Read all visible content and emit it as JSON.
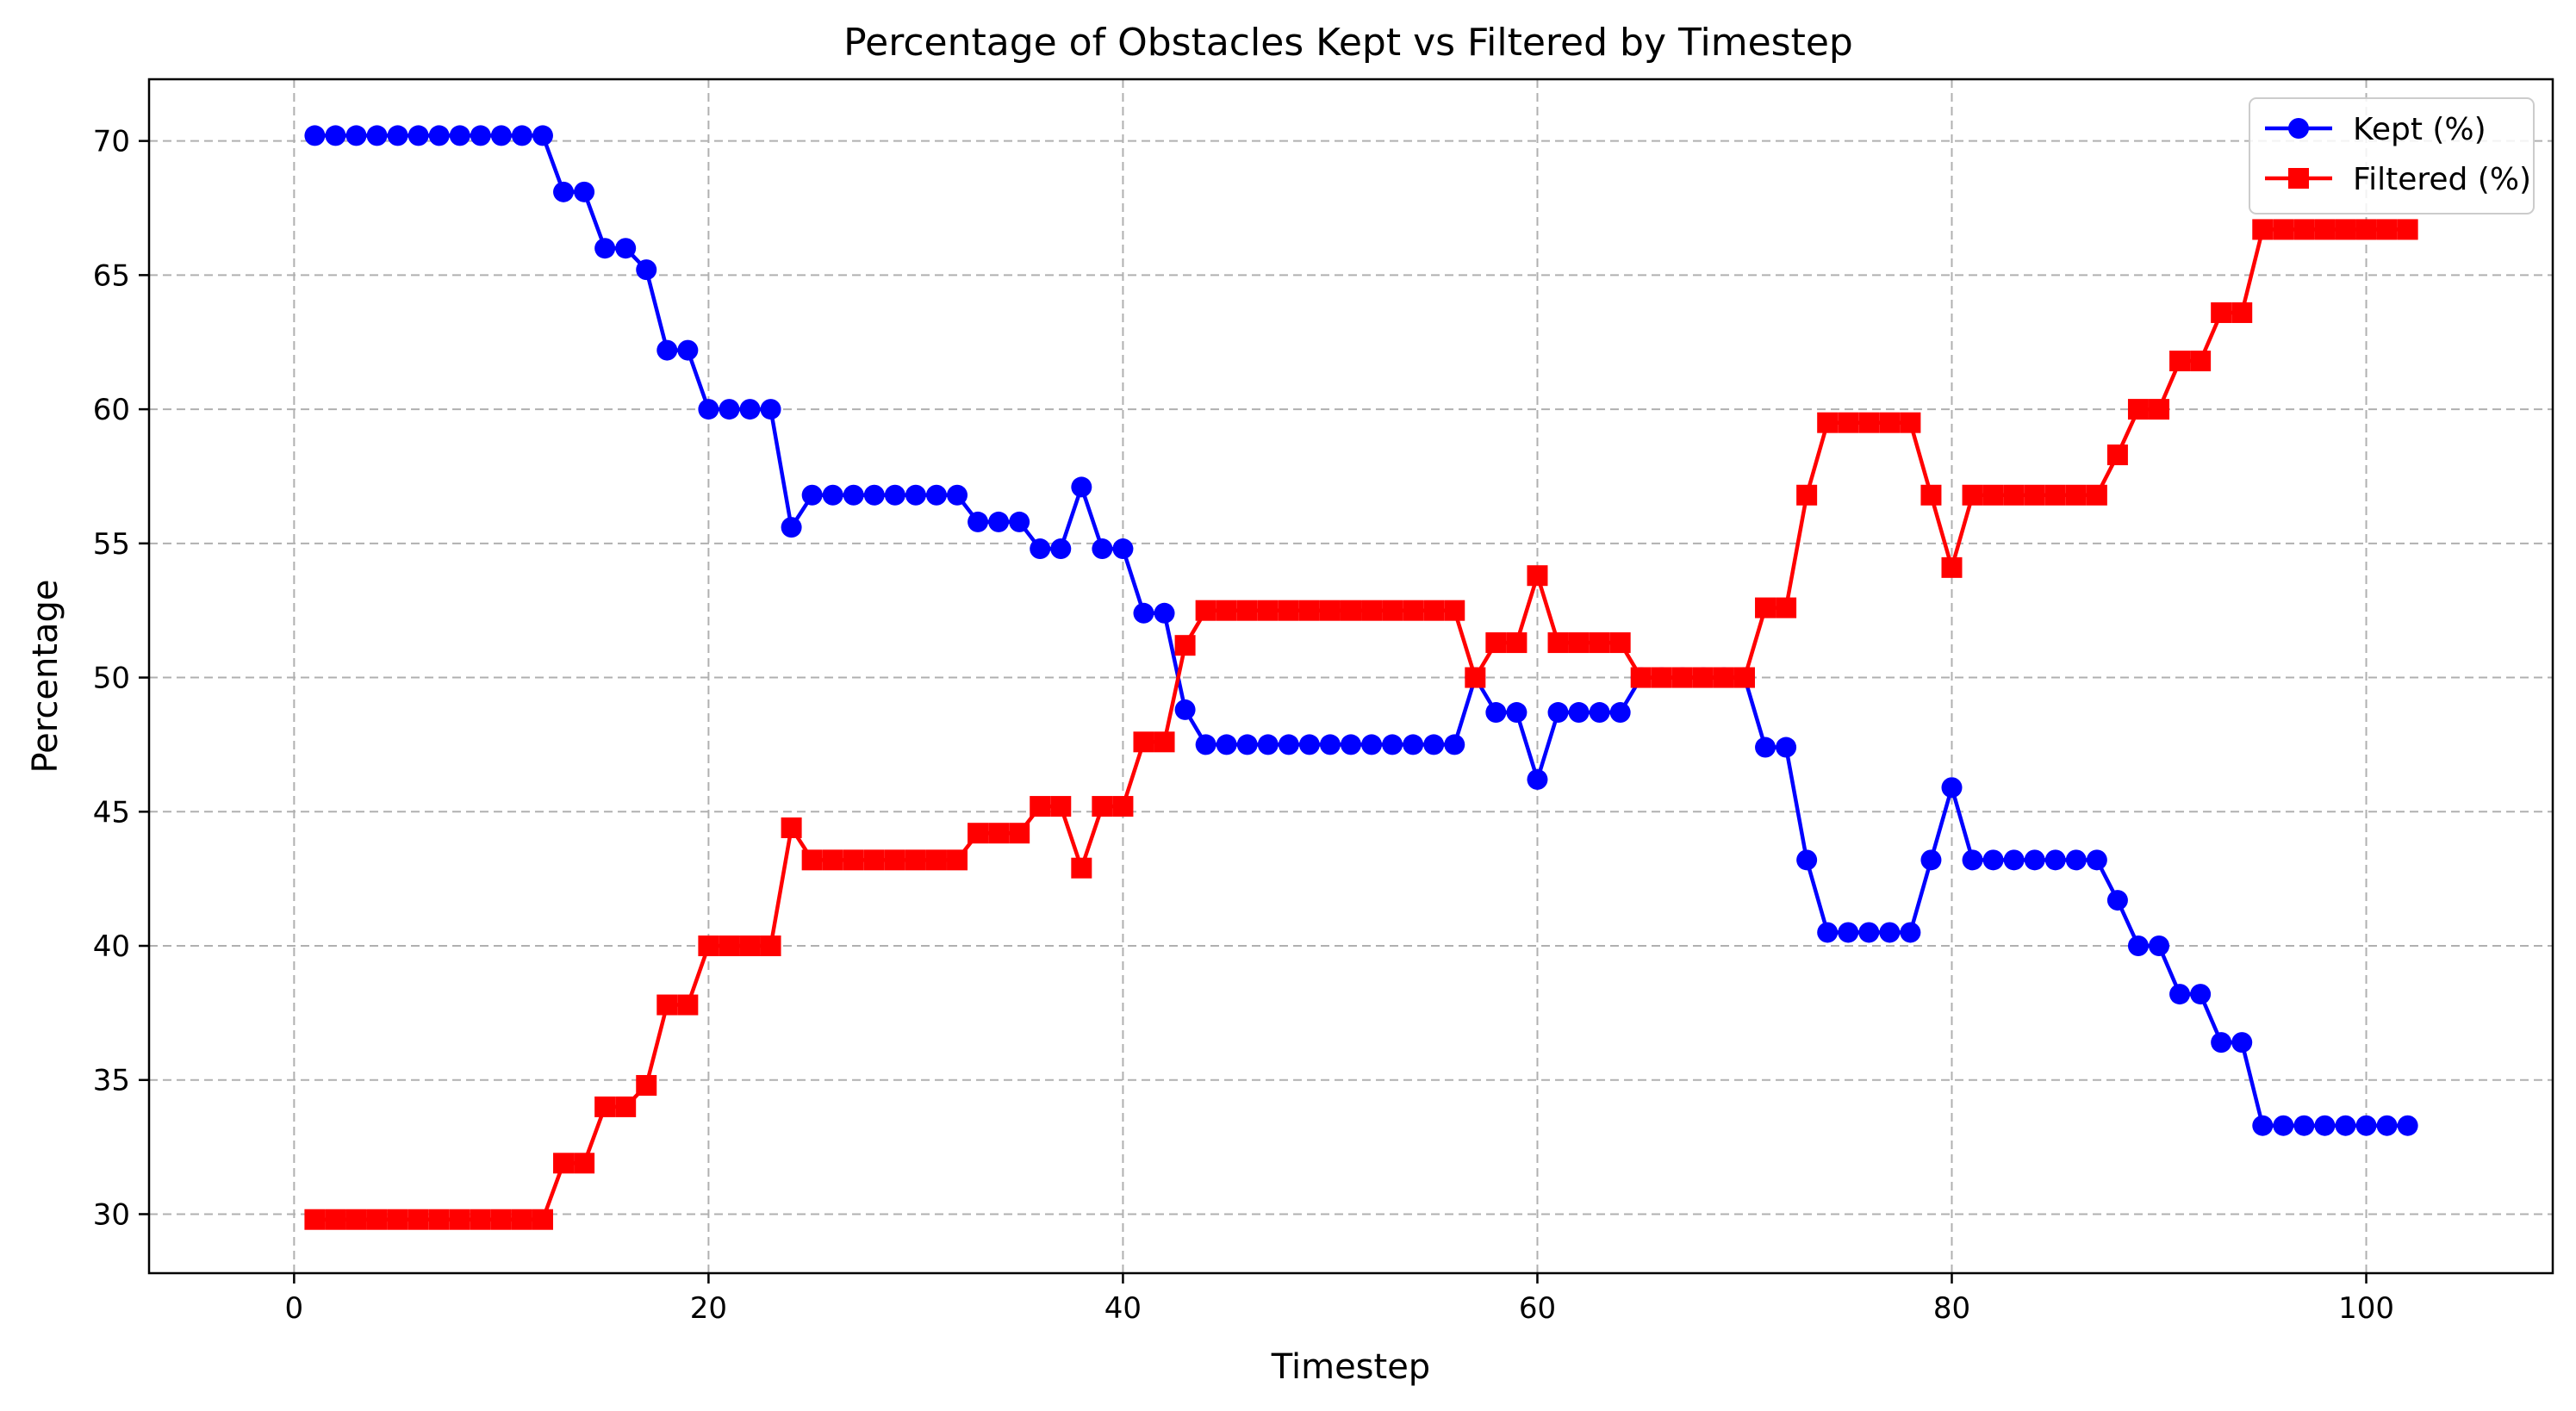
{
  "chart_data": {
    "type": "line",
    "title": "Percentage of Obstacles Kept vs Filtered by Timestep",
    "xlabel": "Timestep",
    "ylabel": "Percentage",
    "xlim": [
      -7,
      109
    ],
    "ylim": [
      27.8,
      72.3
    ],
    "xticks": [
      0,
      20,
      40,
      60,
      80,
      100
    ],
    "yticks": [
      30,
      35,
      40,
      45,
      50,
      55,
      60,
      65,
      70
    ],
    "grid": true,
    "legend_position": "top-right",
    "x": [
      1,
      2,
      3,
      4,
      5,
      6,
      7,
      8,
      9,
      10,
      11,
      12,
      13,
      14,
      15,
      16,
      17,
      18,
      19,
      20,
      21,
      22,
      23,
      24,
      25,
      26,
      27,
      28,
      29,
      30,
      31,
      32,
      33,
      34,
      35,
      36,
      37,
      38,
      39,
      40,
      41,
      42,
      43,
      44,
      45,
      46,
      47,
      48,
      49,
      50,
      51,
      52,
      53,
      54,
      55,
      56,
      57,
      58,
      59,
      60,
      61,
      62,
      63,
      64,
      65,
      66,
      67,
      68,
      69,
      70,
      71,
      72,
      73,
      74,
      75,
      76,
      77,
      78,
      79,
      80,
      81,
      82,
      83,
      84,
      85,
      86,
      87,
      88,
      89,
      90,
      91,
      92,
      93,
      94,
      95,
      96,
      97,
      98,
      99,
      100,
      101,
      102
    ],
    "series": [
      {
        "name": "Kept (%)",
        "color": "#0000ff",
        "marker": "circle",
        "values": [
          70.2,
          70.2,
          70.2,
          70.2,
          70.2,
          70.2,
          70.2,
          70.2,
          70.2,
          70.2,
          70.2,
          70.2,
          68.1,
          68.1,
          66.0,
          66.0,
          65.2,
          62.2,
          62.2,
          60.0,
          60.0,
          60.0,
          60.0,
          55.6,
          56.8,
          56.8,
          56.8,
          56.8,
          56.8,
          56.8,
          56.8,
          56.8,
          55.8,
          55.8,
          55.8,
          54.8,
          54.8,
          57.1,
          54.8,
          54.8,
          52.4,
          52.4,
          48.8,
          47.5,
          47.5,
          47.5,
          47.5,
          47.5,
          47.5,
          47.5,
          47.5,
          47.5,
          47.5,
          47.5,
          47.5,
          47.5,
          50.0,
          48.7,
          48.7,
          46.2,
          48.7,
          48.7,
          48.7,
          48.7,
          50.0,
          50.0,
          50.0,
          50.0,
          50.0,
          50.0,
          47.4,
          47.4,
          43.2,
          40.5,
          40.5,
          40.5,
          40.5,
          40.5,
          43.2,
          45.9,
          43.2,
          43.2,
          43.2,
          43.2,
          43.2,
          43.2,
          43.2,
          41.7,
          40.0,
          40.0,
          38.2,
          38.2,
          36.4,
          36.4,
          33.3,
          33.3,
          33.3,
          33.3,
          33.3,
          33.3,
          33.3,
          33.3
        ]
      },
      {
        "name": "Filtered (%)",
        "color": "#ff0000",
        "marker": "square",
        "values": [
          29.8,
          29.8,
          29.8,
          29.8,
          29.8,
          29.8,
          29.8,
          29.8,
          29.8,
          29.8,
          29.8,
          29.8,
          31.9,
          31.9,
          34.0,
          34.0,
          34.8,
          37.8,
          37.8,
          40.0,
          40.0,
          40.0,
          40.0,
          44.4,
          43.2,
          43.2,
          43.2,
          43.2,
          43.2,
          43.2,
          43.2,
          43.2,
          44.2,
          44.2,
          44.2,
          45.2,
          45.2,
          42.9,
          45.2,
          45.2,
          47.6,
          47.6,
          51.2,
          52.5,
          52.5,
          52.5,
          52.5,
          52.5,
          52.5,
          52.5,
          52.5,
          52.5,
          52.5,
          52.5,
          52.5,
          52.5,
          50.0,
          51.3,
          51.3,
          53.8,
          51.3,
          51.3,
          51.3,
          51.3,
          50.0,
          50.0,
          50.0,
          50.0,
          50.0,
          50.0,
          52.6,
          52.6,
          56.8,
          59.5,
          59.5,
          59.5,
          59.5,
          59.5,
          56.8,
          54.1,
          56.8,
          56.8,
          56.8,
          56.8,
          56.8,
          56.8,
          56.8,
          58.3,
          60.0,
          60.0,
          61.8,
          61.8,
          63.6,
          63.6,
          66.7,
          66.7,
          66.7,
          66.7,
          66.7,
          66.7,
          66.7,
          66.7
        ]
      }
    ]
  }
}
